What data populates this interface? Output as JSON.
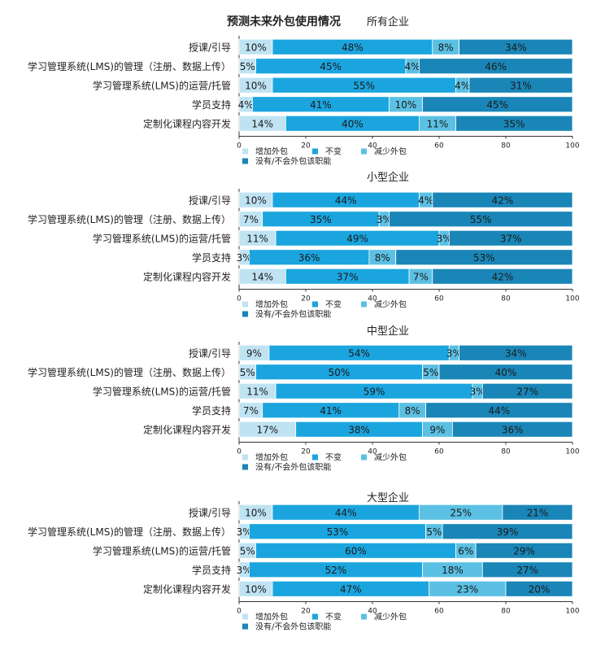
{
  "main_title": "预测未来外包使用情况",
  "colors": {
    "increase": "#bfe3f3",
    "unchanged": "#1ba5df",
    "decrease": "#5bc0e3",
    "none": "#1a86b8"
  },
  "chart_data": [
    {
      "type": "bar",
      "stacked": true,
      "orientation": "horizontal",
      "title": "所有企业",
      "categories": [
        "授课/引导",
        "学习管理系统(LMS)的管理（注册、数据上传）",
        "学习管理系统(LMS)的运营/托管",
        "学员支持",
        "定制化课程内容开发"
      ],
      "series": [
        {
          "name": "增加外包",
          "values": [
            10,
            5,
            10,
            4,
            14
          ]
        },
        {
          "name": "不变",
          "values": [
            48,
            45,
            55,
            41,
            40
          ]
        },
        {
          "name": "减少外包",
          "values": [
            8,
            4,
            4,
            10,
            11
          ]
        },
        {
          "name": "没有/不会外包该职能",
          "values": [
            34,
            46,
            31,
            45,
            35
          ]
        }
      ],
      "xlim": [
        0,
        100
      ],
      "xticks": [
        "0",
        "20",
        "40",
        "60",
        "80",
        "100"
      ],
      "legend": "bottom-left"
    },
    {
      "type": "bar",
      "stacked": true,
      "orientation": "horizontal",
      "title": "小型企业",
      "categories": [
        "授课/引导",
        "学习管理系统(LMS)的管理（注册、数据上传）",
        "学习管理系统(LMS)的运营/托管",
        "学员支持",
        "定制化课程内容开发"
      ],
      "series": [
        {
          "name": "增加外包",
          "values": [
            10,
            7,
            11,
            3,
            14
          ]
        },
        {
          "name": "不变",
          "values": [
            44,
            35,
            49,
            36,
            37
          ]
        },
        {
          "name": "减少外包",
          "values": [
            4,
            3,
            3,
            8,
            7
          ]
        },
        {
          "name": "没有/不会外包该职能",
          "values": [
            42,
            55,
            37,
            53,
            42
          ]
        }
      ],
      "xlim": [
        0,
        100
      ],
      "xticks": [
        "0",
        "20",
        "40",
        "60",
        "80",
        "100"
      ],
      "legend": "bottom-left"
    },
    {
      "type": "bar",
      "stacked": true,
      "orientation": "horizontal",
      "title": "中型企业",
      "categories": [
        "授课/引导",
        "学习管理系统(LMS)的管理（注册、数据上传）",
        "学习管理系统(LMS)的运营/托管",
        "学员支持",
        "定制化课程内容开发"
      ],
      "series": [
        {
          "name": "增加外包",
          "values": [
            9,
            5,
            11,
            7,
            17
          ]
        },
        {
          "name": "不变",
          "values": [
            54,
            50,
            59,
            41,
            38
          ]
        },
        {
          "name": "减少外包",
          "values": [
            3,
            5,
            3,
            8,
            9
          ]
        },
        {
          "name": "没有/不会外包该职能",
          "values": [
            34,
            40,
            27,
            44,
            36
          ]
        }
      ],
      "xlim": [
        0,
        100
      ],
      "xticks": [
        "0",
        "20",
        "40",
        "60",
        "80",
        "100"
      ],
      "legend": "bottom-left"
    },
    {
      "type": "bar",
      "stacked": true,
      "orientation": "horizontal",
      "title": "大型企业",
      "categories": [
        "授课/引导",
        "学习管理系统(LMS)的管理（注册、数据上传）",
        "学习管理系统(LMS)的运营/托管",
        "学员支持",
        "定制化课程内容开发"
      ],
      "series": [
        {
          "name": "增加外包",
          "values": [
            10,
            3,
            5,
            3,
            10
          ]
        },
        {
          "name": "不变",
          "values": [
            44,
            53,
            60,
            52,
            47
          ]
        },
        {
          "name": "减少外包",
          "values": [
            25,
            5,
            6,
            18,
            23
          ]
        },
        {
          "name": "没有/不会外包该职能",
          "values": [
            21,
            39,
            29,
            27,
            20
          ]
        }
      ],
      "xlim": [
        0,
        100
      ],
      "xticks": [
        "0",
        "20",
        "40",
        "60",
        "80",
        "100"
      ],
      "legend": "bottom-left"
    }
  ]
}
